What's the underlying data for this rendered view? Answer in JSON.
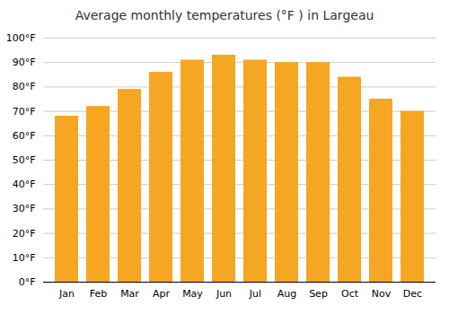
{
  "chart_data": {
    "type": "bar",
    "title": "Average monthly temperatures (°F ) in Largeau",
    "categories": [
      "Jan",
      "Feb",
      "Mar",
      "Apr",
      "May",
      "Jun",
      "Jul",
      "Aug",
      "Sep",
      "Oct",
      "Nov",
      "Dec"
    ],
    "values": [
      68,
      72,
      79,
      86,
      91,
      93,
      91,
      90,
      90,
      84,
      75,
      70
    ],
    "color": "#F5A623",
    "ylim": [
      0,
      100
    ],
    "yticks": [
      {
        "value": 0,
        "label": "0°F"
      },
      {
        "value": 10,
        "label": "10°F"
      },
      {
        "value": 20,
        "label": "20°F"
      },
      {
        "value": 30,
        "label": "30°F"
      },
      {
        "value": 40,
        "label": "40°F"
      },
      {
        "value": 50,
        "label": "50°F"
      },
      {
        "value": 60,
        "label": "60°F"
      },
      {
        "value": 70,
        "label": "70°F"
      },
      {
        "value": 80,
        "label": "80°F"
      },
      {
        "value": 90,
        "label": "90°F"
      },
      {
        "value": 100,
        "label": "100°F"
      }
    ],
    "grid": true
  }
}
